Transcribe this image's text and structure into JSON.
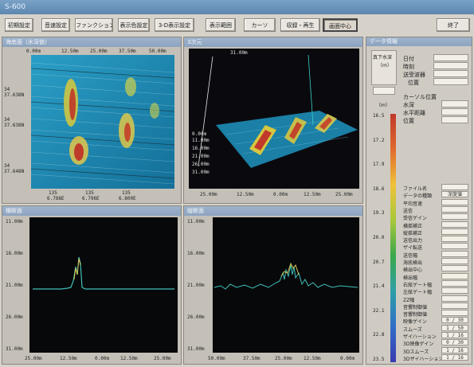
{
  "window": {
    "title": "S-600"
  },
  "toolbar": {
    "buttons": [
      {
        "label": "初期設定"
      },
      {
        "label": "音速設定"
      },
      {
        "label": "ファンクション設定"
      },
      {
        "label": "表示色設定"
      },
      {
        "label": "3-D表示設定"
      },
      {
        "label": "表示範囲"
      },
      {
        "label": "カーソ"
      },
      {
        "label": "収録・再生"
      },
      {
        "label": "画面中心"
      }
    ],
    "exit_label": "終了"
  },
  "panels": {
    "top_left": {
      "title": "海底面（水深値）",
      "x_ticks": [
        "0.00m",
        "12.50m",
        "25.00m",
        "37.50m",
        "50.00m"
      ],
      "y_labels": [
        "34",
        "37.638N",
        "34",
        "37.638N",
        "34",
        "37.648N"
      ],
      "bottom_labels": [
        "135",
        "6.788E",
        "135",
        "6.796E",
        "135",
        "6.800E"
      ]
    },
    "top_right": {
      "title": "3次元",
      "top_label": "31.00m",
      "y_ticks": [
        "0.00m",
        "11.00m",
        "16.00m",
        "21.00m",
        "26.00m",
        "31.00m"
      ],
      "x_ticks": [
        "25.00m",
        "12.50m",
        "0.00m",
        "12.50m",
        "25.00m"
      ]
    },
    "bottom_left": {
      "title": "横断面",
      "y_ticks": [
        "11.00m",
        "16.00m",
        "21.00m",
        "26.00m",
        "31.00m"
      ],
      "x_ticks": [
        "25.00m",
        "12.50m",
        "0.00m",
        "12.50m",
        "25.00m"
      ]
    },
    "bottom_right": {
      "title": "縦断面",
      "y_ticks": [
        "11.00m",
        "16.00m",
        "21.00m",
        "26.00m",
        "31.00m"
      ],
      "x_ticks": [
        "50.00m",
        "37.50m",
        "25.00m",
        "12.50m",
        "0.00m"
      ]
    }
  },
  "sidebar": {
    "title": "データ情報",
    "depth_box_label": "真下水深",
    "depth_unit": "（m）",
    "info_rows": [
      "日付",
      "時刻",
      "送受波器",
      "位置"
    ],
    "cursor_rows": [
      "カーソル位置",
      "水深",
      "水平距離",
      "位置"
    ],
    "colorbar_unit": "（m）",
    "colorbar_ticks": [
      "16.5",
      "17.2",
      "17.9",
      "18.6",
      "19.3",
      "20.0",
      "20.7",
      "21.4",
      "22.1",
      "22.8",
      "23.5"
    ],
    "colorbar_colors": [
      "#c0392b",
      "#e06a2b",
      "#f0c23a",
      "#a8c83a",
      "#3aa84a",
      "#2f9fa8",
      "#2f6fc8",
      "#3a3ab0"
    ],
    "param_rows": [
      {
        "label": "ファイル名",
        "value": ""
      },
      {
        "label": "データの種類",
        "value": "深度値"
      },
      {
        "label": "平均音速",
        "value": ""
      },
      {
        "label": "送信",
        "value": ""
      },
      {
        "label": "受信ゲイン",
        "value": ""
      },
      {
        "label": "横揺補正",
        "value": ""
      },
      {
        "label": "縦揺補正",
        "value": ""
      },
      {
        "label": "送信出力",
        "value": ""
      },
      {
        "label": "ザイ転送",
        "value": ""
      },
      {
        "label": "送信幅",
        "value": ""
      },
      {
        "label": "海底検出",
        "value": ""
      },
      {
        "label": "検出中心",
        "value": ""
      },
      {
        "label": "検出幅",
        "value": ""
      },
      {
        "label": "右舷ゲート幅",
        "value": ""
      },
      {
        "label": "左舷ゲート幅",
        "value": ""
      },
      {
        "label": "ZZ幅",
        "value": ""
      },
      {
        "label": "音響制御値",
        "value": ""
      },
      {
        "label": "音響制御値",
        "value": ""
      },
      {
        "label": "映像ゲイン",
        "value": "0 / 30"
      },
      {
        "label": "スムーズ",
        "value": "1 / 50"
      },
      {
        "label": "ザイハーション",
        "value": "1 / 16"
      },
      {
        "label": "3D映像ゲイン",
        "value": "0 / 30"
      },
      {
        "label": "3Dスムーズ",
        "value": "1 / 16"
      },
      {
        "label": "3Dザイハーション",
        "value": "1 / 16"
      }
    ]
  }
}
